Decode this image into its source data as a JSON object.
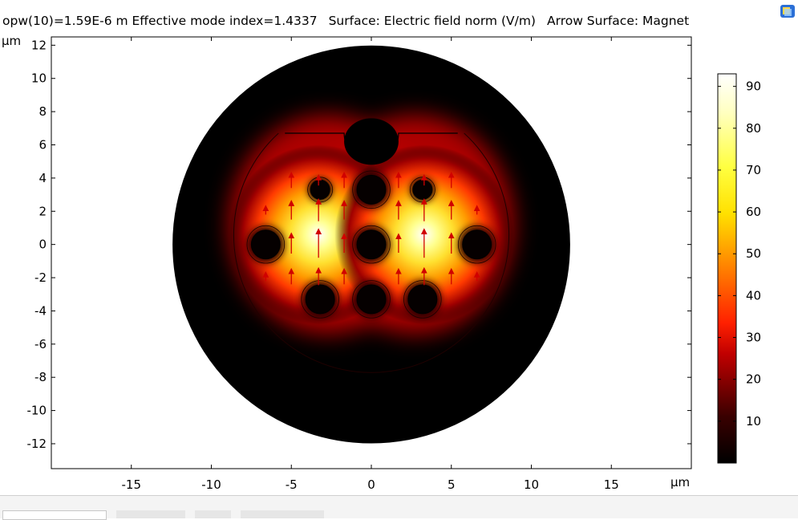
{
  "title": {
    "part1": "opw(10)=1.59E-6 m Effective mode index=1.4337",
    "part2": "Surface: Electric field norm (V/m)",
    "part3": "Arrow Surface: Magnet"
  },
  "chart_data": {
    "type": "heatmap",
    "title": "opw(10)=1.59E-6 m Effective mode index=1.4337  Surface: Electric field norm (V/m)  Arrow Surface: Magnet",
    "xlabel": "μm",
    "ylabel": "μm",
    "xlim": [
      -20,
      20
    ],
    "ylim": [
      -13.5,
      12.5
    ],
    "xticks": [
      -15,
      -10,
      -5,
      0,
      5,
      10,
      15
    ],
    "xtick_labels": [
      "-15",
      "-10",
      "-5",
      "0",
      "5",
      "10",
      "15"
    ],
    "yticks": [
      12,
      10,
      8,
      6,
      4,
      2,
      0,
      -2,
      -4,
      -6,
      -8,
      -10,
      -12
    ],
    "ytick_labels": [
      "12",
      "10",
      "8",
      "6",
      "4",
      "2",
      "0",
      "-2",
      "-4",
      "-6",
      "-8",
      "-10",
      "-12"
    ],
    "colorbar": {
      "min": 0,
      "max": 93,
      "ticks": [
        90,
        80,
        70,
        60,
        50,
        40,
        30,
        20,
        10
      ],
      "tick_labels": [
        "90",
        "80",
        "70",
        "60",
        "50",
        "40",
        "30",
        "20",
        "10"
      ],
      "colormap": "heat (black-red-yellow-white)"
    },
    "geometry": {
      "outer_circle": {
        "cx": 0,
        "cy": 0,
        "r": 12.4
      },
      "air_holes": [
        {
          "cx": -3.2,
          "cy": 3.3,
          "r": 0.6
        },
        {
          "cx": 0,
          "cy": 3.3,
          "r": 0.9
        },
        {
          "cx": 3.2,
          "cy": 3.3,
          "r": 0.6
        },
        {
          "cx": -6.6,
          "cy": 0,
          "r": 0.9
        },
        {
          "cx": 0,
          "cy": 0,
          "r": 0.9
        },
        {
          "cx": 6.6,
          "cy": 0,
          "r": 0.9
        },
        {
          "cx": -3.2,
          "cy": -3.3,
          "r": 0.9
        },
        {
          "cx": 0,
          "cy": -3.3,
          "r": 0.9
        },
        {
          "cx": 3.2,
          "cy": -3.3,
          "r": 0.9
        }
      ]
    },
    "field_peaks": [
      {
        "x": -3.3,
        "y": 0.6,
        "value": 93
      },
      {
        "x": 3.3,
        "y": 0.6,
        "value": 93
      }
    ],
    "arrows": [
      {
        "x": -5,
        "y": 3.8,
        "dy": 0.8
      },
      {
        "x": -3.3,
        "y": 3.8,
        "dy": 0.5
      },
      {
        "x": -1.7,
        "y": 3.8,
        "dy": 0.8
      },
      {
        "x": 1.7,
        "y": 3.8,
        "dy": 0.8
      },
      {
        "x": 3.3,
        "y": 3.8,
        "dy": 0.5
      },
      {
        "x": 5,
        "y": 3.8,
        "dy": 0.8
      },
      {
        "x": -6.6,
        "y": 2,
        "dy": 0.4
      },
      {
        "x": -5,
        "y": 2,
        "dy": 1.0
      },
      {
        "x": -3.3,
        "y": 2,
        "dy": 1.2
      },
      {
        "x": -1.7,
        "y": 2,
        "dy": 1.0
      },
      {
        "x": 1.7,
        "y": 2,
        "dy": 1.0
      },
      {
        "x": 3.3,
        "y": 2,
        "dy": 1.2
      },
      {
        "x": 5,
        "y": 2,
        "dy": 1.0
      },
      {
        "x": 6.6,
        "y": 2,
        "dy": 0.4
      },
      {
        "x": -5,
        "y": 0,
        "dy": 1.1
      },
      {
        "x": -3.3,
        "y": 0,
        "dy": 1.6
      },
      {
        "x": -1.7,
        "y": 0,
        "dy": 1.0
      },
      {
        "x": 1.7,
        "y": 0,
        "dy": 1.0
      },
      {
        "x": 3.3,
        "y": 0,
        "dy": 1.6
      },
      {
        "x": 5,
        "y": 0,
        "dy": 1.1
      },
      {
        "x": -6.6,
        "y": -2,
        "dy": 0.4
      },
      {
        "x": -5,
        "y": -2,
        "dy": 0.8
      },
      {
        "x": -3.3,
        "y": -2,
        "dy": 0.9
      },
      {
        "x": -1.7,
        "y": -2,
        "dy": 0.8
      },
      {
        "x": 1.7,
        "y": -2,
        "dy": 0.8
      },
      {
        "x": 3.3,
        "y": -2,
        "dy": 0.9
      },
      {
        "x": 5,
        "y": -2,
        "dy": 0.8
      },
      {
        "x": 6.6,
        "y": -2,
        "dy": 0.4
      }
    ]
  },
  "colors": {
    "arrow": "#d10000",
    "frame": "#000000",
    "background": "#ffffff"
  },
  "icons": {
    "corner": "window-icon"
  },
  "bottom_bar": {}
}
